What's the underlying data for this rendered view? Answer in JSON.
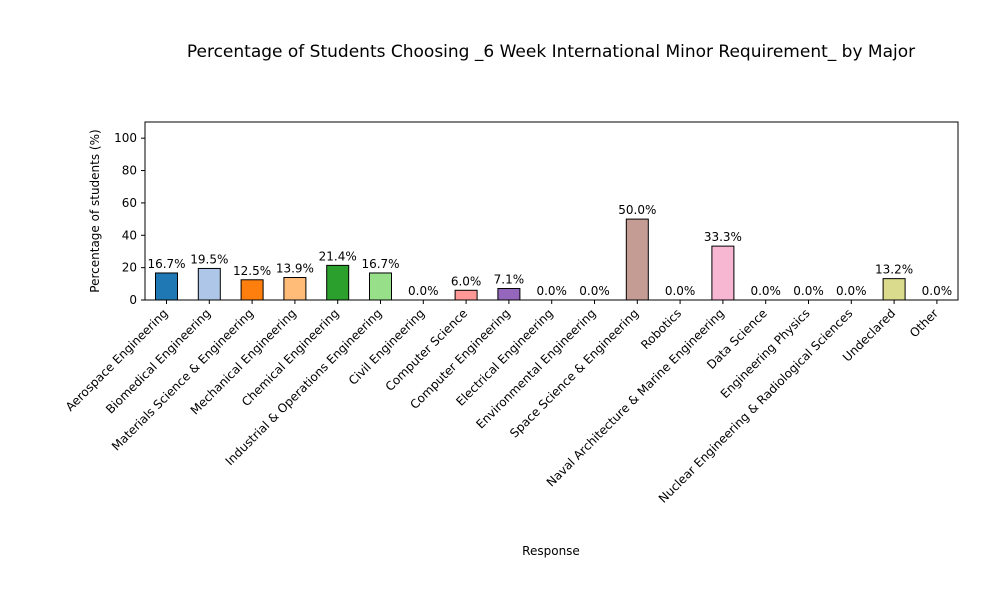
{
  "chart_data": {
    "type": "bar",
    "title": "Percentage of Students Choosing _6 Week International Minor Requirement_ by Major",
    "xlabel": "Response",
    "ylabel": "Percentage of students (%)",
    "ylim": [
      0,
      110
    ],
    "yticks": [
      0,
      20,
      40,
      60,
      80,
      100
    ],
    "grid": false,
    "categories": [
      "Aerospace Engineering",
      "Biomedical Engineering",
      "Materials Science & Engineering",
      "Mechanical Engineering",
      "Chemical Engineering",
      "Industrial & Operations Engineering",
      "Civil Engineering",
      "Computer Science",
      "Computer Engineering",
      "Electrical Engineering",
      "Environmental Engineering",
      "Space Science & Engineering",
      "Robotics",
      "Naval Architecture & Marine Engineering",
      "Data Science",
      "Engineering Physics",
      "Nuclear Engineering & Radiological Sciences",
      "Undeclared",
      "Other"
    ],
    "values": [
      16.7,
      19.5,
      12.5,
      13.9,
      21.4,
      16.7,
      0.0,
      6.0,
      7.1,
      0.0,
      0.0,
      50.0,
      0.0,
      33.3,
      0.0,
      0.0,
      0.0,
      13.2,
      0.0
    ],
    "value_labels": [
      "16.7%",
      "19.5%",
      "12.5%",
      "13.9%",
      "21.4%",
      "16.7%",
      "0.0%",
      "6.0%",
      "7.1%",
      "0.0%",
      "0.0%",
      "50.0%",
      "0.0%",
      "33.3%",
      "0.0%",
      "0.0%",
      "0.0%",
      "13.2%",
      "0.0%"
    ],
    "colors": [
      "#1f77b4",
      "#aec7e8",
      "#ff7f0e",
      "#ffbb78",
      "#2ca02c",
      "#98df8a",
      "#d62728",
      "#ff9896",
      "#9467bd",
      "#c5b0d5",
      "#8c564b",
      "#c49c94",
      "#e377c2",
      "#f7b6d2",
      "#7f7f7f",
      "#c7c7c7",
      "#bcbd22",
      "#dbdb8d",
      "#17becf"
    ]
  }
}
